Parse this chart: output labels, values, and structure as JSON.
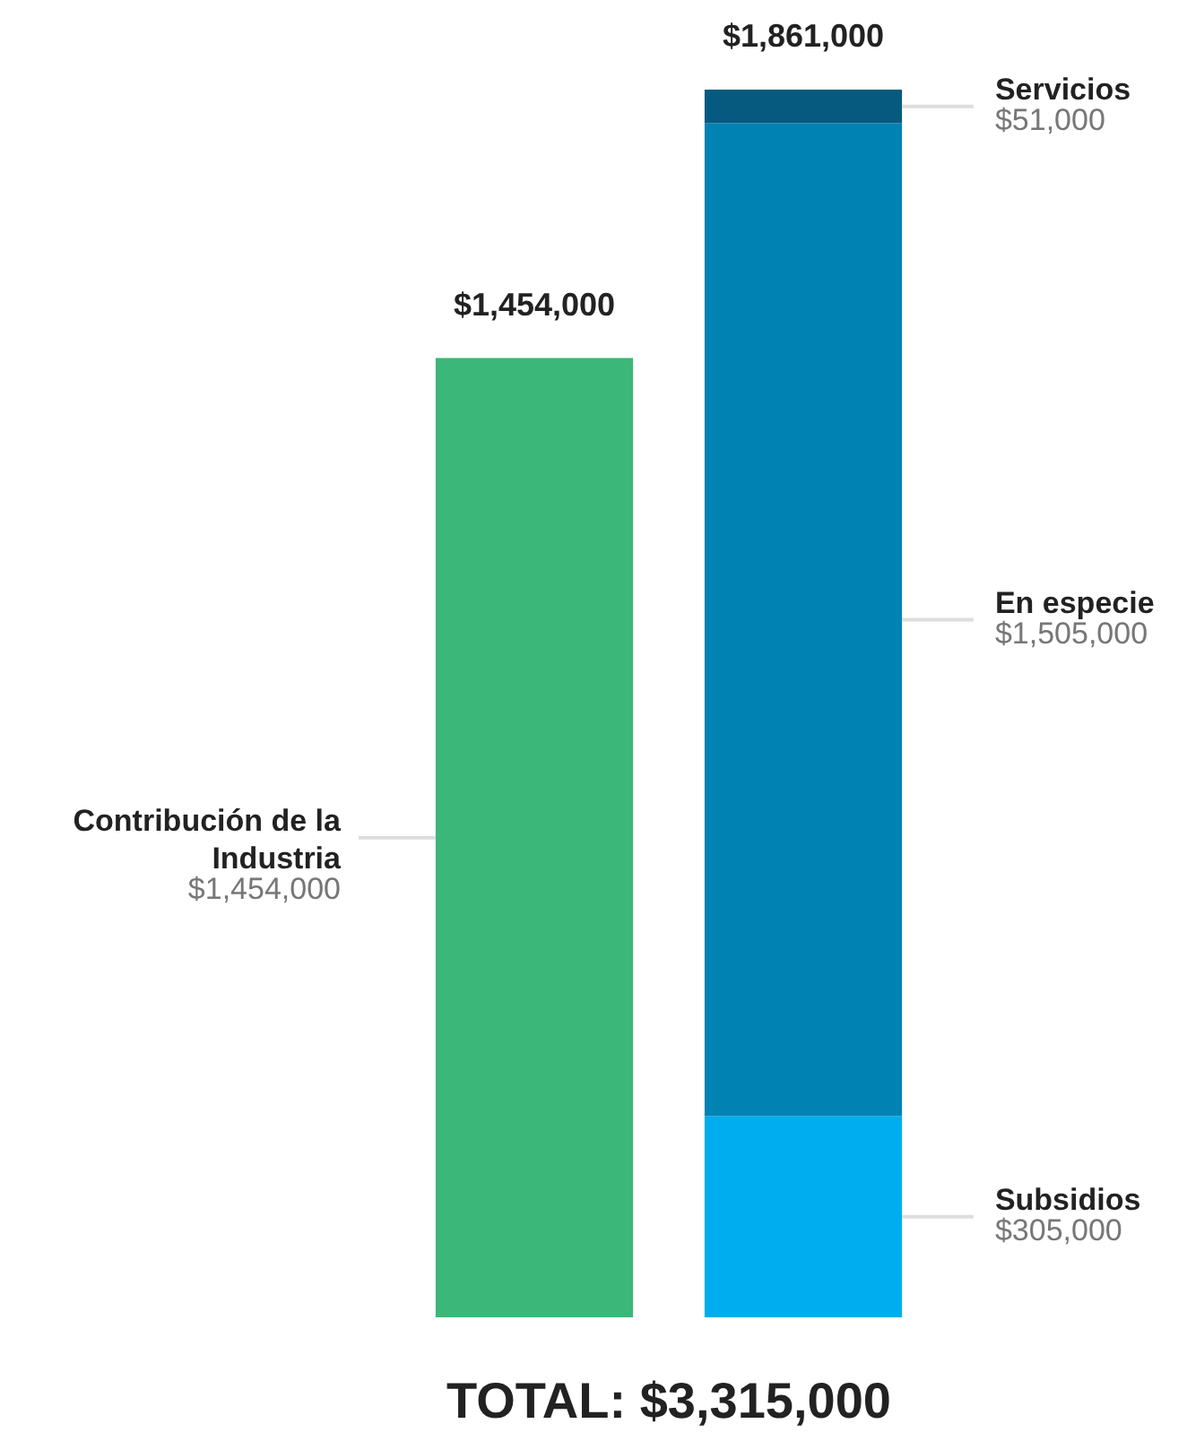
{
  "chart_data": {
    "type": "bar",
    "stacked": true,
    "categories": [
      null,
      null
    ],
    "series": [
      {
        "name": "Contribución de la Industria",
        "color": "#3bb77a",
        "values": [
          1454000,
          null
        ],
        "value_labels": [
          "$1,454,000",
          null
        ]
      },
      {
        "name": "Subsidios",
        "color": "#00adee",
        "values": [
          null,
          305000
        ],
        "value_labels": [
          null,
          "$305,000"
        ]
      },
      {
        "name": "En especie",
        "color": "#0083b3",
        "values": [
          null,
          1505000
        ],
        "value_labels": [
          null,
          "$1,505,000"
        ]
      },
      {
        "name": "Servicios",
        "color": "#065a80",
        "values": [
          null,
          51000
        ],
        "value_labels": [
          null,
          "$51,000"
        ]
      }
    ],
    "totals": [
      "$1,454,000",
      "$1,861,000"
    ],
    "annotations": [
      "TOTAL: $3,315,000"
    ]
  }
}
